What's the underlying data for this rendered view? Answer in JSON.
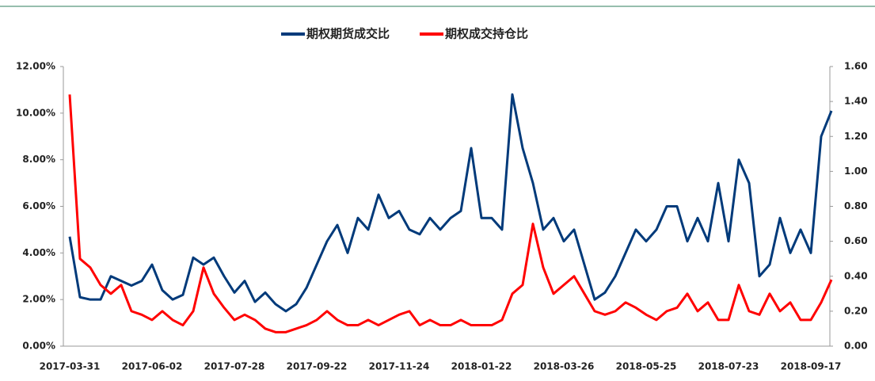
{
  "chart_data": {
    "type": "line",
    "categories": [
      "2017-03-31",
      null,
      null,
      null,
      null,
      null,
      null,
      null,
      "2017-06-02",
      null,
      null,
      null,
      null,
      null,
      null,
      null,
      "2017-07-28",
      null,
      null,
      null,
      null,
      null,
      null,
      null,
      "2017-09-22",
      null,
      null,
      null,
      null,
      null,
      null,
      null,
      "2017-11-24",
      null,
      null,
      null,
      null,
      null,
      null,
      null,
      "2018-01-22",
      null,
      null,
      null,
      null,
      null,
      null,
      null,
      "2018-03-26",
      null,
      null,
      null,
      null,
      null,
      null,
      null,
      "2018-05-25",
      null,
      null,
      null,
      null,
      null,
      null,
      null,
      "2018-07-23",
      null,
      null,
      null,
      null,
      null,
      null,
      null,
      "2018-09-17",
      null,
      null
    ],
    "series": [
      {
        "name": "期权期货成交比",
        "color": "#003a7a",
        "values": [
          4.7,
          2.1,
          2.0,
          2.0,
          3.0,
          2.8,
          2.6,
          2.8,
          3.5,
          2.4,
          2.0,
          2.2,
          3.8,
          3.5,
          3.8,
          3.0,
          2.3,
          2.8,
          1.9,
          2.3,
          1.8,
          1.5,
          1.8,
          2.5,
          3.5,
          4.5,
          5.2,
          4.0,
          5.5,
          5.0,
          6.5,
          5.5,
          5.8,
          5.0,
          4.8,
          5.5,
          5.0,
          5.5,
          5.8,
          8.5,
          5.5,
          5.5,
          5.0,
          10.8,
          8.5,
          7.0,
          5.0,
          5.5,
          4.5,
          5.0,
          3.5,
          2.0,
          2.3,
          3.0,
          4.0,
          5.0,
          4.5,
          5.0,
          6.0,
          6.0,
          4.5,
          5.5,
          4.5,
          7.0,
          4.5,
          8.0,
          7.0,
          3.0,
          3.5,
          5.5,
          4.0,
          5.0,
          4.0,
          9.0,
          10.1
        ]
      },
      {
        "name": "期权成交持仓比",
        "color": "#ff0000",
        "axis": "y2",
        "values": [
          1.44,
          0.5,
          0.45,
          0.35,
          0.3,
          0.35,
          0.2,
          0.18,
          0.15,
          0.2,
          0.15,
          0.12,
          0.2,
          0.45,
          0.3,
          0.22,
          0.15,
          0.18,
          0.15,
          0.1,
          0.08,
          0.08,
          0.1,
          0.12,
          0.15,
          0.2,
          0.15,
          0.12,
          0.12,
          0.15,
          0.12,
          0.15,
          0.18,
          0.2,
          0.12,
          0.15,
          0.12,
          0.12,
          0.15,
          0.12,
          0.12,
          0.12,
          0.15,
          0.3,
          0.35,
          0.7,
          0.45,
          0.3,
          0.35,
          0.4,
          0.3,
          0.2,
          0.18,
          0.2,
          0.25,
          0.22,
          0.18,
          0.15,
          0.2,
          0.22,
          0.3,
          0.2,
          0.25,
          0.15,
          0.15,
          0.35,
          0.2,
          0.18,
          0.3,
          0.2,
          0.25,
          0.15,
          0.15,
          0.25,
          0.38
        ]
      }
    ],
    "ylim": [
      0,
      12
    ],
    "yticks": [
      {
        "value": 0,
        "label": "0.00%"
      },
      {
        "value": 2,
        "label": "2.00%"
      },
      {
        "value": 4,
        "label": "4.00%"
      },
      {
        "value": 6,
        "label": "6.00%"
      },
      {
        "value": 8,
        "label": "8.00%"
      },
      {
        "value": 10,
        "label": "10.00%"
      },
      {
        "value": 12,
        "label": "12.00%"
      }
    ],
    "y2lim": [
      0,
      1.6
    ],
    "y2ticks": [
      {
        "value": 0,
        "label": "0.00"
      },
      {
        "value": 0.2,
        "label": "0.20"
      },
      {
        "value": 0.4,
        "label": "0.40"
      },
      {
        "value": 0.6,
        "label": "0.60"
      },
      {
        "value": 0.8,
        "label": "0.80"
      },
      {
        "value": 1.0,
        "label": "1.00"
      },
      {
        "value": 1.2,
        "label": "1.20"
      },
      {
        "value": 1.4,
        "label": "1.40"
      },
      {
        "value": 1.6,
        "label": "1.60"
      }
    ],
    "legend": "top",
    "grid": false
  }
}
